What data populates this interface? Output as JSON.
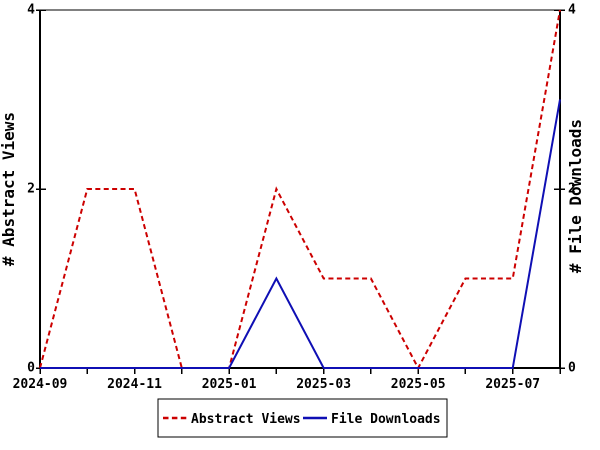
{
  "chart_data": {
    "type": "line",
    "x_categories": [
      "2024-09",
      "2024-10",
      "2024-11",
      "2024-12",
      "2025-01",
      "2025-02",
      "2025-03",
      "2025-04",
      "2025-05",
      "2025-06",
      "2025-07",
      "2025-08"
    ],
    "x_tick_labels_shown": [
      "2024-09",
      "2024-11",
      "2025-01",
      "2025-03",
      "2025-05",
      "2025-07"
    ],
    "series": [
      {
        "name": "Abstract Views",
        "values": [
          0,
          2,
          2,
          0,
          0,
          2,
          1,
          1,
          0,
          1,
          1,
          4
        ],
        "color": "#cc0000",
        "style": "dashed",
        "axis": "left"
      },
      {
        "name": "File Downloads",
        "values": [
          0,
          0,
          0,
          0,
          0,
          1,
          0,
          0,
          0,
          0,
          0,
          3
        ],
        "color": "#0f0fb4",
        "style": "solid",
        "axis": "right"
      }
    ],
    "ylabel_left": "# Abstract Views",
    "ylabel_right": "# File Downloads",
    "y_ticks": [
      0,
      2,
      4
    ],
    "ylim": [
      0,
      4
    ],
    "grid": false,
    "legend_position": "bottom-center",
    "background_color": "#ffffff",
    "axis_color": "#000000"
  }
}
